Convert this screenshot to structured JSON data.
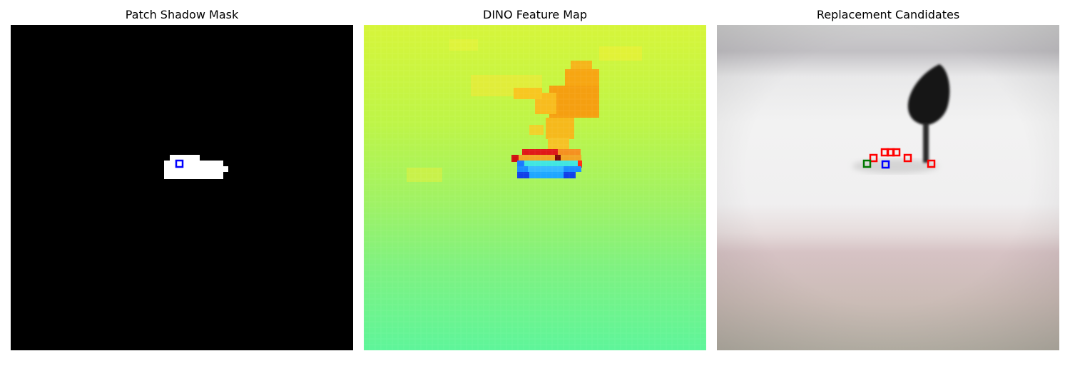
{
  "panels": [
    {
      "title": "Patch Shadow Mask"
    },
    {
      "title": "DINO Feature Map"
    },
    {
      "title": "Replacement Candidates"
    }
  ],
  "colors": {
    "mask_background": "#000000",
    "mask_foreground": "#ffffff",
    "query_box": "#0000ff",
    "candidate_box": "#ff0000",
    "selected_box": "#007700"
  },
  "icons": {
    "patch_marker": "square-outline"
  }
}
